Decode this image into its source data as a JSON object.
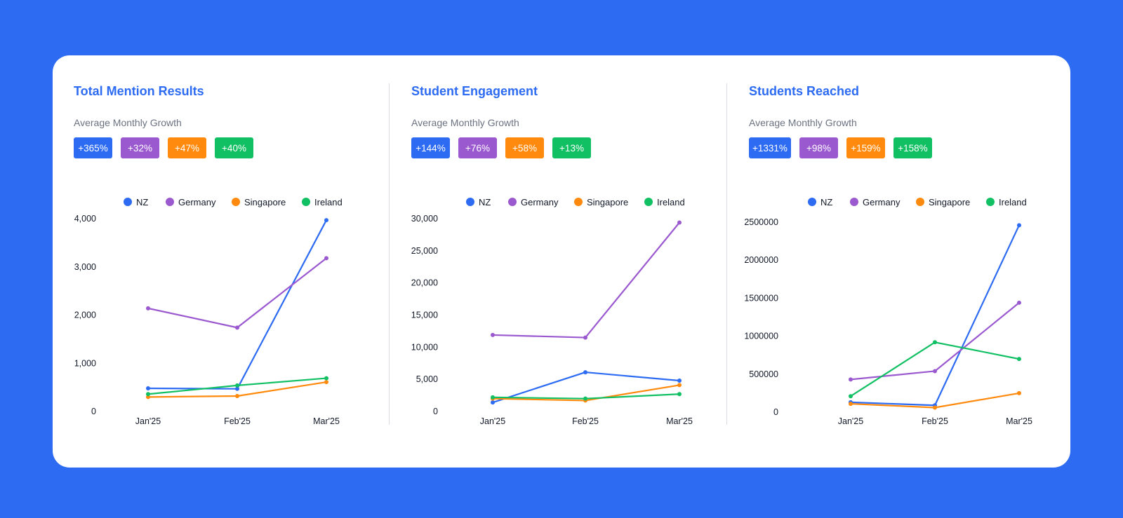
{
  "colors": {
    "NZ": "#2c6bf2",
    "Germany": "#9b59d0",
    "Singapore": "#ff8a0d",
    "Ireland": "#12c064",
    "title": "#2c6bf2",
    "background": "#2c6bf2"
  },
  "panels": [
    {
      "title": "Total Mention Results",
      "subtitle": "Average Monthly Growth",
      "badges": [
        "+365%",
        "+32%",
        "+47%",
        "+40%"
      ]
    },
    {
      "title": "Student Engagement",
      "subtitle": "Average Monthly Growth",
      "badges": [
        "+144%",
        "+76%",
        "+58%",
        "+13%"
      ]
    },
    {
      "title": "Students Reached",
      "subtitle": "Average Monthly Growth",
      "badges": [
        "+1331%",
        "+98%",
        "+159%",
        "+158%"
      ]
    }
  ],
  "chart_data": [
    {
      "type": "line",
      "title": "Total Mention Results",
      "categories": [
        "Jan'25",
        "Feb'25",
        "Mar'25"
      ],
      "ylim": [
        0,
        4000
      ],
      "yticks": [
        0,
        1000,
        2000,
        3000,
        4000
      ],
      "ytick_labels": [
        "0",
        "1,000",
        "2,000",
        "3,000",
        "4,000"
      ],
      "legend_position": "top",
      "grid": false,
      "series": [
        {
          "name": "NZ",
          "values": [
            480,
            470,
            3970
          ]
        },
        {
          "name": "Germany",
          "values": [
            2140,
            1740,
            3180
          ]
        },
        {
          "name": "Singapore",
          "values": [
            300,
            320,
            610
          ]
        },
        {
          "name": "Ireland",
          "values": [
            360,
            540,
            690
          ]
        }
      ]
    },
    {
      "type": "line",
      "title": "Student Engagement",
      "categories": [
        "Jan'25",
        "Feb'25",
        "Mar'25"
      ],
      "ylim": [
        0,
        30000
      ],
      "yticks": [
        0,
        5000,
        10000,
        15000,
        20000,
        25000,
        30000
      ],
      "ytick_labels": [
        "0",
        "5,000",
        "10,000",
        "15,000",
        "20,000",
        "25,000",
        "30,000"
      ],
      "legend_position": "top",
      "grid": false,
      "series": [
        {
          "name": "NZ",
          "values": [
            1400,
            6100,
            4800
          ]
        },
        {
          "name": "Germany",
          "values": [
            11900,
            11500,
            29400
          ]
        },
        {
          "name": "Singapore",
          "values": [
            2000,
            1700,
            4100
          ]
        },
        {
          "name": "Ireland",
          "values": [
            2200,
            2000,
            2700
          ]
        }
      ]
    },
    {
      "type": "line",
      "title": "Students Reached",
      "categories": [
        "Jan'25",
        "Feb'25",
        "Mar'25"
      ],
      "ylim": [
        0,
        2500000
      ],
      "yticks": [
        0,
        500000,
        1000000,
        1500000,
        2000000,
        2500000
      ],
      "ytick_labels": [
        "0",
        "500000",
        "1000000",
        "1500000",
        "2000000",
        "2500000"
      ],
      "legend_position": "top",
      "grid": false,
      "series": [
        {
          "name": "NZ",
          "values": [
            130000,
            90000,
            2460000
          ]
        },
        {
          "name": "Germany",
          "values": [
            430000,
            540000,
            1440000
          ]
        },
        {
          "name": "Singapore",
          "values": [
            110000,
            60000,
            250000
          ]
        },
        {
          "name": "Ireland",
          "values": [
            210000,
            920000,
            700000
          ]
        }
      ]
    }
  ]
}
